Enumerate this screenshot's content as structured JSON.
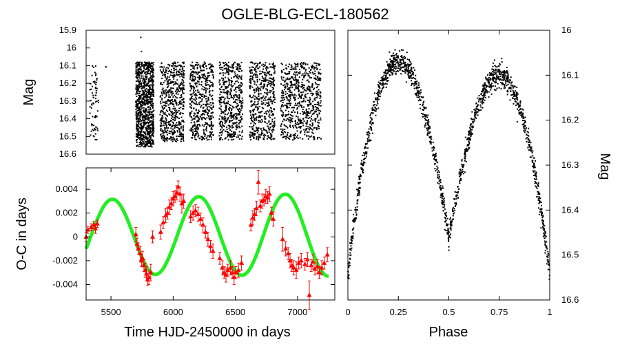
{
  "figure_title": "OGLE-BLG-ECL-180562",
  "chart_data": [
    {
      "type": "scatter",
      "name": "light-curve",
      "xlabel": "",
      "ylabel": "Mag",
      "xlim": [
        5300,
        7300
      ],
      "ylim": [
        16.6,
        15.9
      ],
      "y_inverted": true,
      "yticks": [
        "15.9",
        "16",
        "16.1",
        "16.2",
        "16.3",
        "16.4",
        "16.5",
        "16.6"
      ],
      "xticks": [],
      "grid": false,
      "marker_color": "#000000",
      "segments": [
        {
          "x_start": 5330,
          "x_end": 5400,
          "count": 70,
          "mag_min": 16.1,
          "mag_max": 16.52
        },
        {
          "x_start": 5455,
          "x_end": 5468,
          "count": 2,
          "mag_min": 16.1,
          "mag_max": 16.12
        },
        {
          "x_start": 5700,
          "x_end": 5845,
          "count": 1000,
          "mag_min": 16.08,
          "mag_max": 16.56
        },
        {
          "x_start": 5895,
          "x_end": 6090,
          "count": 550,
          "mag_min": 16.08,
          "mag_max": 16.53
        },
        {
          "x_start": 6135,
          "x_end": 6325,
          "count": 500,
          "mag_min": 16.08,
          "mag_max": 16.52
        },
        {
          "x_start": 6370,
          "x_end": 6560,
          "count": 480,
          "mag_min": 16.08,
          "mag_max": 16.52
        },
        {
          "x_start": 6615,
          "x_end": 6820,
          "count": 500,
          "mag_min": 16.08,
          "mag_max": 16.52
        },
        {
          "x_start": 6865,
          "x_end": 7190,
          "count": 700,
          "mag_min": 16.08,
          "mag_max": 16.52
        }
      ],
      "outliers": [
        {
          "x": 5740,
          "y": 15.94
        },
        {
          "x": 5745,
          "y": 16.02
        }
      ]
    },
    {
      "type": "scatter",
      "name": "o-c-diagram",
      "xlabel": "Time HJD-2450000 in days",
      "ylabel": "O-C in days",
      "xlim": [
        5300,
        7300
      ],
      "ylim": [
        -0.0053,
        0.0058
      ],
      "xticks": [
        "5500",
        "6000",
        "6500",
        "7000"
      ],
      "yticks": [
        "-0.004",
        "-0.002",
        "0",
        "0.002",
        "0.004"
      ],
      "grid": false,
      "point_color": "#ff0000",
      "fit_color": "#22ee22",
      "fit_model": {
        "description": "sinusoid with decaying-to-growing trend",
        "period_days": 695,
        "phase_peak_x": 5510,
        "amplitude_start": 0.0031,
        "amplitude_end": 0.0035,
        "offset_start": 0.0,
        "offset_end": 0.0002
      },
      "fit_x_range": [
        5300,
        7250
      ],
      "points": [
        {
          "x": 5300,
          "y": 0.0,
          "err": 0.0004
        },
        {
          "x": 5315,
          "y": 0.0006,
          "err": 0.0003
        },
        {
          "x": 5340,
          "y": 0.0008,
          "err": 0.0003
        },
        {
          "x": 5360,
          "y": 0.001,
          "err": 0.0003
        },
        {
          "x": 5375,
          "y": 0.0007,
          "err": 0.0004
        },
        {
          "x": 5390,
          "y": 0.0011,
          "err": 0.0003
        },
        {
          "x": 5700,
          "y": 0.0002,
          "err": 0.0006
        },
        {
          "x": 5710,
          "y": -0.0006,
          "err": 0.0005
        },
        {
          "x": 5720,
          "y": -0.001,
          "err": 0.0005
        },
        {
          "x": 5735,
          "y": -0.0014,
          "err": 0.0006
        },
        {
          "x": 5745,
          "y": -0.002,
          "err": 0.0005
        },
        {
          "x": 5755,
          "y": -0.0018,
          "err": 0.0006
        },
        {
          "x": 5765,
          "y": -0.0024,
          "err": 0.0005
        },
        {
          "x": 5775,
          "y": -0.0028,
          "err": 0.0006
        },
        {
          "x": 5785,
          "y": -0.0031,
          "err": 0.0006
        },
        {
          "x": 5795,
          "y": -0.0036,
          "err": 0.0005
        },
        {
          "x": 5805,
          "y": -0.0034,
          "err": 0.0006
        },
        {
          "x": 5820,
          "y": -0.003,
          "err": 0.0007
        },
        {
          "x": 5835,
          "y": 0.0,
          "err": 0.0005
        },
        {
          "x": 5900,
          "y": 0.0004,
          "err": 0.0006
        },
        {
          "x": 5920,
          "y": 0.0012,
          "err": 0.0005
        },
        {
          "x": 5940,
          "y": 0.0018,
          "err": 0.0006
        },
        {
          "x": 5955,
          "y": 0.002,
          "err": 0.0005
        },
        {
          "x": 5970,
          "y": 0.0025,
          "err": 0.0006
        },
        {
          "x": 5985,
          "y": 0.0028,
          "err": 0.0005
        },
        {
          "x": 6000,
          "y": 0.0032,
          "err": 0.0006
        },
        {
          "x": 6015,
          "y": 0.0034,
          "err": 0.0005
        },
        {
          "x": 6030,
          "y": 0.0037,
          "err": 0.0006
        },
        {
          "x": 6040,
          "y": 0.0042,
          "err": 0.0005
        },
        {
          "x": 6055,
          "y": 0.0036,
          "err": 0.0006
        },
        {
          "x": 6070,
          "y": 0.0028,
          "err": 0.0008
        },
        {
          "x": 6085,
          "y": 0.003,
          "err": 0.0006
        },
        {
          "x": 6140,
          "y": 0.0017,
          "err": 0.0005
        },
        {
          "x": 6160,
          "y": 0.002,
          "err": 0.0006
        },
        {
          "x": 6180,
          "y": 0.0022,
          "err": 0.0005
        },
        {
          "x": 6200,
          "y": 0.0019,
          "err": 0.0006
        },
        {
          "x": 6220,
          "y": 0.0015,
          "err": 0.0005
        },
        {
          "x": 6240,
          "y": 0.001,
          "err": 0.0006
        },
        {
          "x": 6260,
          "y": 0.0004,
          "err": 0.0005
        },
        {
          "x": 6280,
          "y": -0.0002,
          "err": 0.0006
        },
        {
          "x": 6300,
          "y": -0.0008,
          "err": 0.0005
        },
        {
          "x": 6320,
          "y": -0.0012,
          "err": 0.0006
        },
        {
          "x": 6375,
          "y": -0.0018,
          "err": 0.0005
        },
        {
          "x": 6395,
          "y": -0.0026,
          "err": 0.0006
        },
        {
          "x": 6410,
          "y": -0.003,
          "err": 0.0005
        },
        {
          "x": 6425,
          "y": -0.0032,
          "err": 0.0006
        },
        {
          "x": 6440,
          "y": -0.0028,
          "err": 0.0005
        },
        {
          "x": 6460,
          "y": -0.0026,
          "err": 0.0006
        },
        {
          "x": 6475,
          "y": -0.003,
          "err": 0.0005
        },
        {
          "x": 6490,
          "y": -0.0034,
          "err": 0.0006
        },
        {
          "x": 6505,
          "y": -0.003,
          "err": 0.0005
        },
        {
          "x": 6525,
          "y": -0.0028,
          "err": 0.0006
        },
        {
          "x": 6550,
          "y": -0.0022,
          "err": 0.0006
        },
        {
          "x": 6625,
          "y": 0.001,
          "err": 0.0005
        },
        {
          "x": 6640,
          "y": 0.0016,
          "err": 0.0006
        },
        {
          "x": 6655,
          "y": 0.0019,
          "err": 0.0005
        },
        {
          "x": 6670,
          "y": 0.0024,
          "err": 0.0006
        },
        {
          "x": 6685,
          "y": 0.0046,
          "err": 0.001
        },
        {
          "x": 6700,
          "y": 0.0026,
          "err": 0.0005
        },
        {
          "x": 6715,
          "y": 0.003,
          "err": 0.0006
        },
        {
          "x": 6730,
          "y": 0.0031,
          "err": 0.0005
        },
        {
          "x": 6745,
          "y": 0.0034,
          "err": 0.0006
        },
        {
          "x": 6760,
          "y": 0.0033,
          "err": 0.0005
        },
        {
          "x": 6775,
          "y": 0.0036,
          "err": 0.0006
        },
        {
          "x": 6790,
          "y": 0.002,
          "err": 0.0005
        },
        {
          "x": 6805,
          "y": 0.0015,
          "err": 0.0006
        },
        {
          "x": 6880,
          "y": -0.0002,
          "err": 0.001
        },
        {
          "x": 6905,
          "y": -0.001,
          "err": 0.0006
        },
        {
          "x": 6925,
          "y": -0.0014,
          "err": 0.0005
        },
        {
          "x": 6940,
          "y": -0.002,
          "err": 0.0006
        },
        {
          "x": 6955,
          "y": -0.0024,
          "err": 0.0005
        },
        {
          "x": 6970,
          "y": -0.0026,
          "err": 0.0006
        },
        {
          "x": 6990,
          "y": -0.0028,
          "err": 0.0007
        },
        {
          "x": 7010,
          "y": -0.0022,
          "err": 0.0005
        },
        {
          "x": 7030,
          "y": -0.002,
          "err": 0.0006
        },
        {
          "x": 7060,
          "y": -0.0023,
          "err": 0.0005
        },
        {
          "x": 7080,
          "y": -0.0019,
          "err": 0.0006
        },
        {
          "x": 7095,
          "y": -0.0049,
          "err": 0.0012
        },
        {
          "x": 7110,
          "y": -0.0024,
          "err": 0.0005
        },
        {
          "x": 7125,
          "y": -0.0021,
          "err": 0.0006
        },
        {
          "x": 7140,
          "y": -0.0027,
          "err": 0.0005
        },
        {
          "x": 7160,
          "y": -0.0025,
          "err": 0.0006
        },
        {
          "x": 7175,
          "y": -0.003,
          "err": 0.0005
        },
        {
          "x": 7195,
          "y": -0.0026,
          "err": 0.0006
        },
        {
          "x": 7215,
          "y": -0.0022,
          "err": 0.0005
        },
        {
          "x": 7240,
          "y": -0.0015,
          "err": 0.0006
        }
      ]
    },
    {
      "type": "scatter",
      "name": "phased-light-curve",
      "xlabel": "Phase",
      "ylabel": "Mag",
      "xlim": [
        0,
        1
      ],
      "ylim": [
        16.6,
        16.0
      ],
      "y_inverted": true,
      "xticks": [
        "0",
        "0.25",
        "0.5",
        "0.75",
        "1"
      ],
      "yticks": [
        "16",
        "16.1",
        "16.2",
        "16.3",
        "16.4",
        "16.5",
        "16.6"
      ],
      "grid": false,
      "marker_color": "#000000",
      "curve_model": {
        "max_mag_phase_0_25": 16.07,
        "max_mag_phase_0_75": 16.1,
        "min_mag_phase_0": 16.55,
        "min_mag_phase_0_5": 16.47,
        "scatter_mag": 0.025
      },
      "point_count": 1600
    }
  ]
}
